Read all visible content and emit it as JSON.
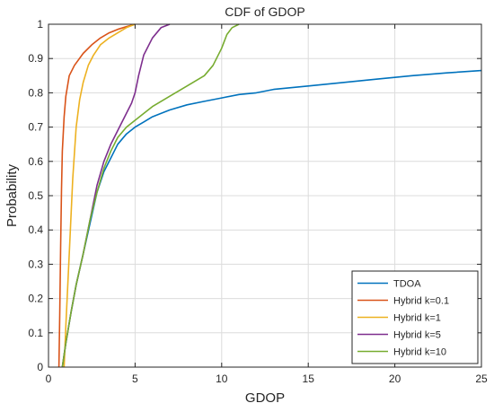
{
  "chart_data": {
    "type": "line",
    "title": "CDF of GDOP",
    "xlabel": "GDOP",
    "ylabel": "Probability",
    "xlim": [
      0,
      25
    ],
    "ylim": [
      0,
      1
    ],
    "xticks": [
      0,
      5,
      10,
      15,
      20,
      25
    ],
    "yticks": [
      0,
      0.1,
      0.2,
      0.3,
      0.4,
      0.5,
      0.6,
      0.7,
      0.8,
      0.9,
      1
    ],
    "grid": true,
    "legend_position": "bottom-right",
    "series": [
      {
        "name": "TDOA",
        "color": "#0072BD",
        "x": [
          0.8,
          1.0,
          1.3,
          1.6,
          2.0,
          2.4,
          2.8,
          3.2,
          3.6,
          4.0,
          4.5,
          5.0,
          5.5,
          6.0,
          7.0,
          8.0,
          9.0,
          10.0,
          11.0,
          12.0,
          13.0,
          14.0,
          15.0,
          17.0,
          19.0,
          21.0,
          23.0,
          25.0
        ],
        "y": [
          0.0,
          0.07,
          0.16,
          0.24,
          0.33,
          0.42,
          0.51,
          0.57,
          0.61,
          0.65,
          0.68,
          0.7,
          0.715,
          0.73,
          0.75,
          0.765,
          0.775,
          0.785,
          0.795,
          0.8,
          0.81,
          0.815,
          0.82,
          0.83,
          0.84,
          0.85,
          0.858,
          0.865
        ]
      },
      {
        "name": "Hybrid k=0.1",
        "color": "#D95319",
        "x": [
          0.6,
          0.65,
          0.7,
          0.75,
          0.8,
          0.9,
          1.0,
          1.2,
          1.5,
          2.0,
          2.5,
          3.0,
          3.5,
          4.0,
          4.5,
          5.0
        ],
        "y": [
          0.0,
          0.15,
          0.35,
          0.52,
          0.63,
          0.73,
          0.79,
          0.85,
          0.88,
          0.915,
          0.94,
          0.96,
          0.975,
          0.985,
          0.993,
          1.0
        ]
      },
      {
        "name": "Hybrid k=1",
        "color": "#EDB120",
        "x": [
          0.9,
          1.0,
          1.2,
          1.4,
          1.6,
          1.8,
          2.0,
          2.3,
          2.6,
          3.0,
          3.5,
          4.0,
          4.5,
          5.0
        ],
        "y": [
          0.0,
          0.12,
          0.33,
          0.55,
          0.7,
          0.78,
          0.83,
          0.88,
          0.91,
          0.94,
          0.96,
          0.975,
          0.99,
          1.0
        ]
      },
      {
        "name": "Hybrid k=5",
        "color": "#7E2F8E",
        "x": [
          0.8,
          1.0,
          1.3,
          1.6,
          2.0,
          2.4,
          2.8,
          3.2,
          3.6,
          4.0,
          4.4,
          4.8,
          5.0,
          5.2,
          5.5,
          6.0,
          6.5,
          7.0
        ],
        "y": [
          0.0,
          0.07,
          0.16,
          0.24,
          0.33,
          0.43,
          0.53,
          0.6,
          0.65,
          0.69,
          0.73,
          0.77,
          0.8,
          0.85,
          0.91,
          0.96,
          0.99,
          1.0
        ]
      },
      {
        "name": "Hybrid k=10",
        "color": "#77AC30",
        "x": [
          0.8,
          1.0,
          1.3,
          1.6,
          2.0,
          2.4,
          2.8,
          3.2,
          3.6,
          4.0,
          4.5,
          5.0,
          6.0,
          7.0,
          8.0,
          9.0,
          9.5,
          10.0,
          10.3,
          10.6,
          11.0
        ],
        "y": [
          0.0,
          0.07,
          0.16,
          0.24,
          0.33,
          0.43,
          0.51,
          0.58,
          0.63,
          0.67,
          0.7,
          0.72,
          0.76,
          0.79,
          0.82,
          0.85,
          0.88,
          0.93,
          0.97,
          0.99,
          1.0
        ]
      }
    ]
  }
}
